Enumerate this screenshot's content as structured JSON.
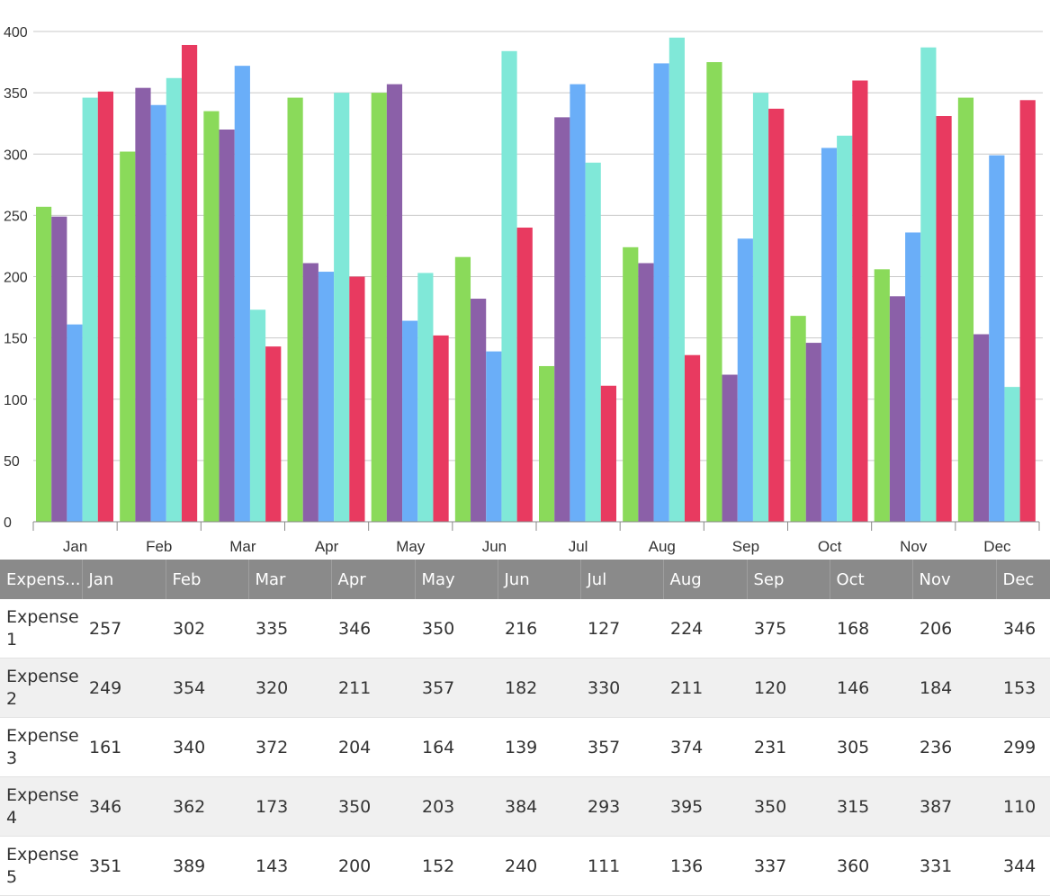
{
  "colors": [
    "#8ada5a",
    "#8b60a8",
    "#6aaef8",
    "#80e8d8",
    "#e83a60"
  ],
  "chart_data": {
    "type": "bar",
    "categories": [
      "Jan",
      "Feb",
      "Mar",
      "Apr",
      "May",
      "Jun",
      "Jul",
      "Aug",
      "Sep",
      "Oct",
      "Nov",
      "Dec"
    ],
    "ylim": [
      0,
      400
    ],
    "yticks": [
      0,
      50,
      100,
      150,
      200,
      250,
      300,
      350,
      400
    ],
    "grid": true,
    "series": [
      {
        "name": "Expense 1",
        "values": [
          257,
          302,
          335,
          346,
          350,
          216,
          127,
          224,
          375,
          168,
          206,
          346
        ]
      },
      {
        "name": "Expense 2",
        "values": [
          249,
          354,
          320,
          211,
          357,
          182,
          330,
          211,
          120,
          146,
          184,
          153
        ]
      },
      {
        "name": "Expense 3",
        "values": [
          161,
          340,
          372,
          204,
          164,
          139,
          357,
          374,
          231,
          305,
          236,
          299
        ]
      },
      {
        "name": "Expense 4",
        "values": [
          346,
          362,
          173,
          350,
          203,
          384,
          293,
          395,
          350,
          315,
          387,
          110
        ]
      },
      {
        "name": "Expense 5",
        "values": [
          351,
          389,
          143,
          200,
          152,
          240,
          111,
          136,
          337,
          360,
          331,
          344
        ]
      }
    ]
  },
  "table": {
    "corner_header": "Expens...",
    "months": [
      "Jan",
      "Feb",
      "Mar",
      "Apr",
      "May",
      "Jun",
      "Jul",
      "Aug",
      "Sep",
      "Oct",
      "Nov",
      "Dec"
    ],
    "rows": [
      {
        "label_line1": "Expense",
        "label_line2": "1",
        "values": [
          "257",
          "302",
          "335",
          "346",
          "350",
          "216",
          "127",
          "224",
          "375",
          "168",
          "206",
          "346"
        ]
      },
      {
        "label_line1": "Expense",
        "label_line2": "2",
        "values": [
          "249",
          "354",
          "320",
          "211",
          "357",
          "182",
          "330",
          "211",
          "120",
          "146",
          "184",
          "153"
        ]
      },
      {
        "label_line1": "Expense",
        "label_line2": "3",
        "values": [
          "161",
          "340",
          "372",
          "204",
          "164",
          "139",
          "357",
          "374",
          "231",
          "305",
          "236",
          "299"
        ]
      },
      {
        "label_line1": "Expense",
        "label_line2": "4",
        "values": [
          "346",
          "362",
          "173",
          "350",
          "203",
          "384",
          "293",
          "395",
          "350",
          "315",
          "387",
          "110"
        ]
      },
      {
        "label_line1": "Expense",
        "label_line2": "5",
        "values": [
          "351",
          "389",
          "143",
          "200",
          "152",
          "240",
          "111",
          "136",
          "337",
          "360",
          "331",
          "344"
        ]
      }
    ]
  }
}
